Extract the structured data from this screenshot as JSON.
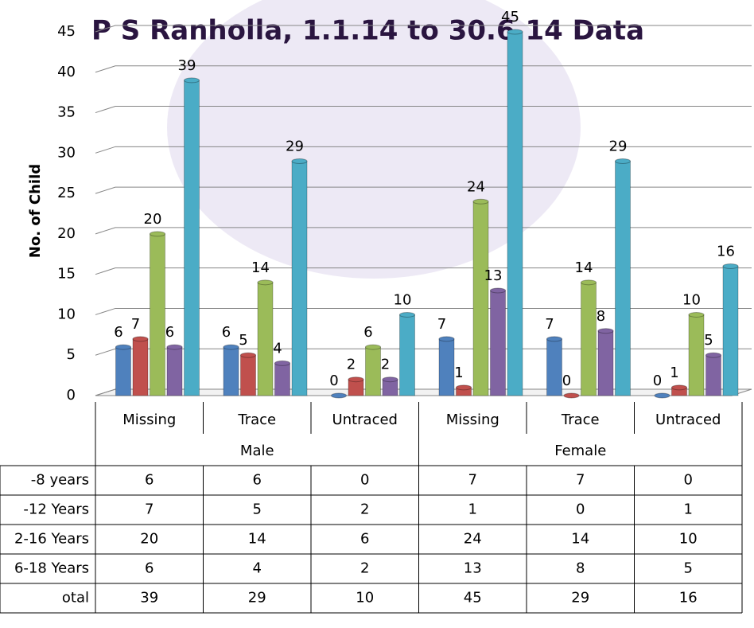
{
  "chart_data": {
    "type": "bar3d",
    "title": "P S Ranholla, 1.1.14 to 30.6.14 Data",
    "y_label": "No. of Child",
    "groups": [
      "Male",
      "Female"
    ],
    "categories": [
      "Missing",
      "Trace",
      "Untraced",
      "Missing",
      "Trace",
      "Untraced"
    ],
    "series": [
      {
        "name": "-8 years",
        "color": "#4f81bd",
        "values": [
          6,
          6,
          0,
          7,
          7,
          0
        ]
      },
      {
        "name": "-12 Years",
        "color": "#c0504d",
        "values": [
          7,
          5,
          2,
          1,
          0,
          1
        ]
      },
      {
        "name": "2-16 Years",
        "color": "#9bbb59",
        "values": [
          20,
          14,
          6,
          24,
          14,
          10
        ]
      },
      {
        "name": "6-18 Years",
        "color": "#8064a2",
        "values": [
          6,
          4,
          2,
          13,
          8,
          5
        ]
      },
      {
        "name": "otal",
        "color": "#4bacc6",
        "values": [
          39,
          29,
          10,
          45,
          29,
          16
        ]
      }
    ],
    "ylim": [
      0,
      45
    ],
    "yticks": [
      0,
      5,
      10,
      15,
      20,
      25,
      30,
      35,
      40,
      45
    ],
    "grid": true
  }
}
